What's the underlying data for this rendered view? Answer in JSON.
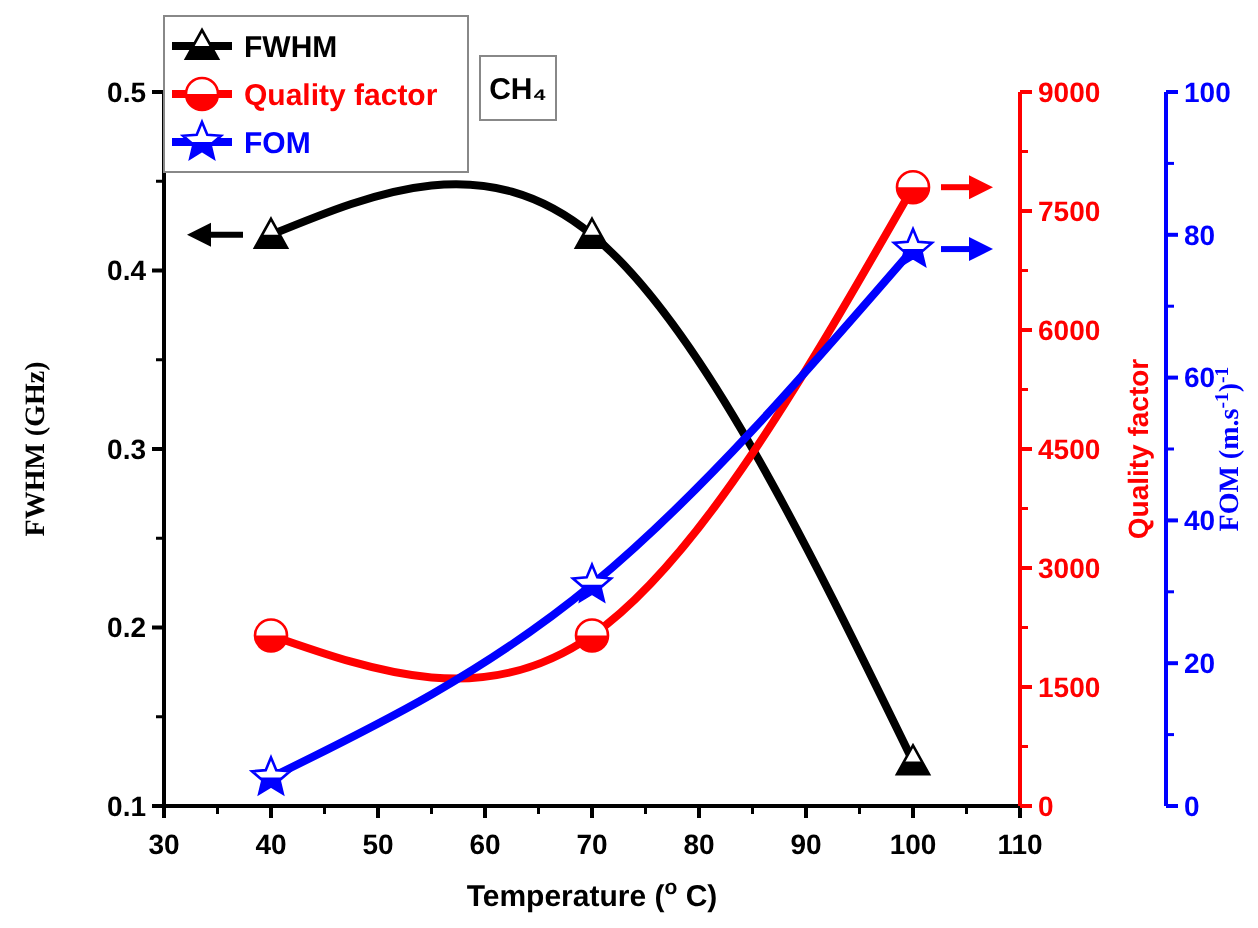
{
  "chart_data": {
    "type": "line",
    "xlabel": "Temperature ($^{o}$ C)",
    "ylabel": "FWHM (GHz)",
    "y2label": "Quality factor",
    "y3label": "FOM (m.s$^{-1}$)$^{-1}$",
    "x": [
      40,
      70,
      100
    ],
    "xlim": [
      30,
      110
    ],
    "xticks": [
      30,
      40,
      50,
      60,
      70,
      80,
      90,
      100,
      110
    ],
    "ylim": [
      0.1,
      0.5
    ],
    "yticks": [
      0.1,
      0.2,
      0.3,
      0.4,
      0.5
    ],
    "y2lim": [
      0,
      9000
    ],
    "y2ticks": [
      0,
      1500,
      3000,
      4500,
      6000,
      7500,
      9000
    ],
    "y3lim": [
      0,
      100
    ],
    "y3ticks": [
      0,
      20,
      40,
      60,
      80,
      100
    ],
    "legend": "top left",
    "annotations": [
      "CH₄"
    ],
    "series": [
      {
        "name": "FWHM",
        "color": "#000000",
        "values": [
          0.42,
          0.42,
          0.125
        ],
        "marker": "triangle"
      },
      {
        "name": "Quality factor",
        "color": "#ff0000",
        "values": [
          2150,
          2150,
          7800
        ],
        "axis": "y2",
        "marker": "circle"
      },
      {
        "name": "FOM",
        "color": "#0000ff",
        "values": [
          4,
          31,
          78
        ],
        "axis": "y3",
        "marker": "star"
      }
    ]
  }
}
